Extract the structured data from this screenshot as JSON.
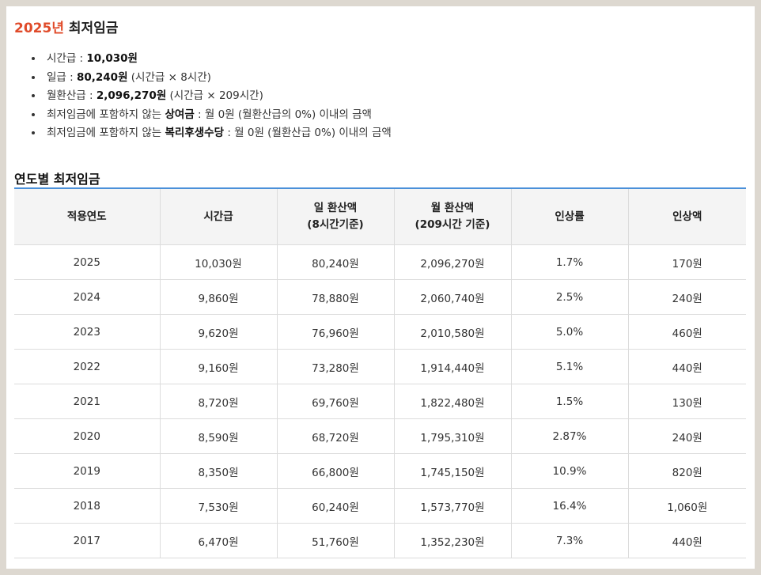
{
  "header": {
    "year": "2025년",
    "title": "최저임금"
  },
  "facts": [
    {
      "prefix": "시간급 : ",
      "bold": "10,030원",
      "suffix": ""
    },
    {
      "prefix": "일급 : ",
      "bold": "80,240원",
      "suffix": " (시간급 × 8시간)"
    },
    {
      "prefix": "월환산급 : ",
      "bold": "2,096,270원",
      "suffix": " (시간급 × 209시간)"
    },
    {
      "prefix": "최저임금에 포함하지 않는 ",
      "bold": "상여금",
      "suffix": " : 월 0원 (월환산급의 0%) 이내의 금액"
    },
    {
      "prefix": "최저임금에 포함하지 않는 ",
      "bold": "복리후생수당",
      "suffix": " : 월 0원 (월환산급 0%) 이내의 금액"
    }
  ],
  "section": {
    "title": "연도별 최저임금"
  },
  "table": {
    "headers": [
      {
        "line1": "적용연도",
        "line2": ""
      },
      {
        "line1": "시간급",
        "line2": ""
      },
      {
        "line1": "일 환산액",
        "line2": "(8시간기준)"
      },
      {
        "line1": "월 환산액",
        "line2": "(209시간 기준)"
      },
      {
        "line1": "인상률",
        "line2": ""
      },
      {
        "line1": "인상액",
        "line2": ""
      }
    ],
    "rows": [
      [
        "2025",
        "10,030원",
        "80,240원",
        "2,096,270원",
        "1.7%",
        "170원"
      ],
      [
        "2024",
        "9,860원",
        "78,880원",
        "2,060,740원",
        "2.5%",
        "240원"
      ],
      [
        "2023",
        "9,620원",
        "76,960원",
        "2,010,580원",
        "5.0%",
        "460원"
      ],
      [
        "2022",
        "9,160원",
        "73,280원",
        "1,914,440원",
        "5.1%",
        "440원"
      ],
      [
        "2021",
        "8,720원",
        "69,760원",
        "1,822,480원",
        "1.5%",
        "130원"
      ],
      [
        "2020",
        "8,590원",
        "68,720원",
        "1,795,310원",
        "2.87%",
        "240원"
      ],
      [
        "2019",
        "8,350원",
        "66,800원",
        "1,745,150원",
        "10.9%",
        "820원"
      ],
      [
        "2018",
        "7,530원",
        "60,240원",
        "1,573,770원",
        "16.4%",
        "1,060원"
      ],
      [
        "2017",
        "6,470원",
        "51,760원",
        "1,352,230원",
        "7.3%",
        "440원"
      ]
    ]
  },
  "colors": {
    "year_accent": "#e04b2a",
    "table_top_border": "#4a90d9",
    "header_bg": "#f4f4f4",
    "page_bg": "#ddd8d0"
  }
}
